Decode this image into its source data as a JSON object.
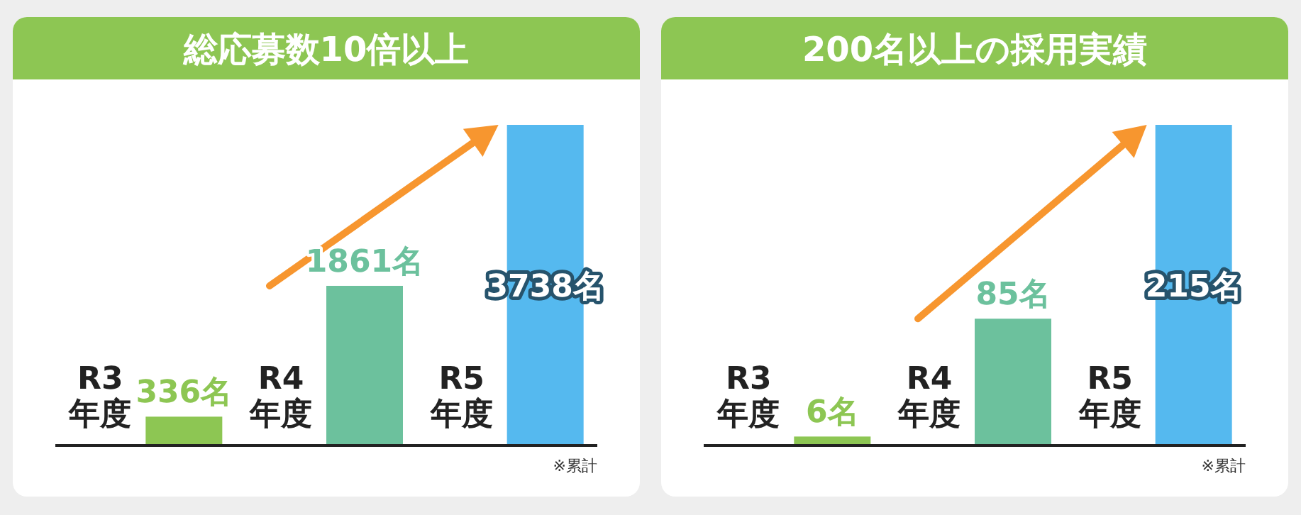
{
  "chart_data": [
    {
      "type": "bar",
      "title": "総応募数10倍以上",
      "categories": [
        "R3\n年度",
        "R4\n年度",
        "R5\n年度"
      ],
      "values": [
        336,
        1861,
        3738
      ],
      "colors": [
        "#8dc653",
        "#6cc19d",
        "#55b9ef"
      ],
      "value_labels": [
        "336名",
        "1861名",
        "3738名"
      ],
      "annotations": [
        "※累計"
      ]
    },
    {
      "type": "bar",
      "title": "200名以上の採用実績",
      "categories": [
        "R3\n年度",
        "R4\n年度",
        "R5\n年度"
      ],
      "values": [
        6,
        85,
        215
      ],
      "colors": [
        "#8dc653",
        "#6cc19d",
        "#55b9ef"
      ],
      "value_labels": [
        "6名",
        "85名",
        "215名"
      ],
      "annotations": [
        "※累計"
      ]
    }
  ]
}
